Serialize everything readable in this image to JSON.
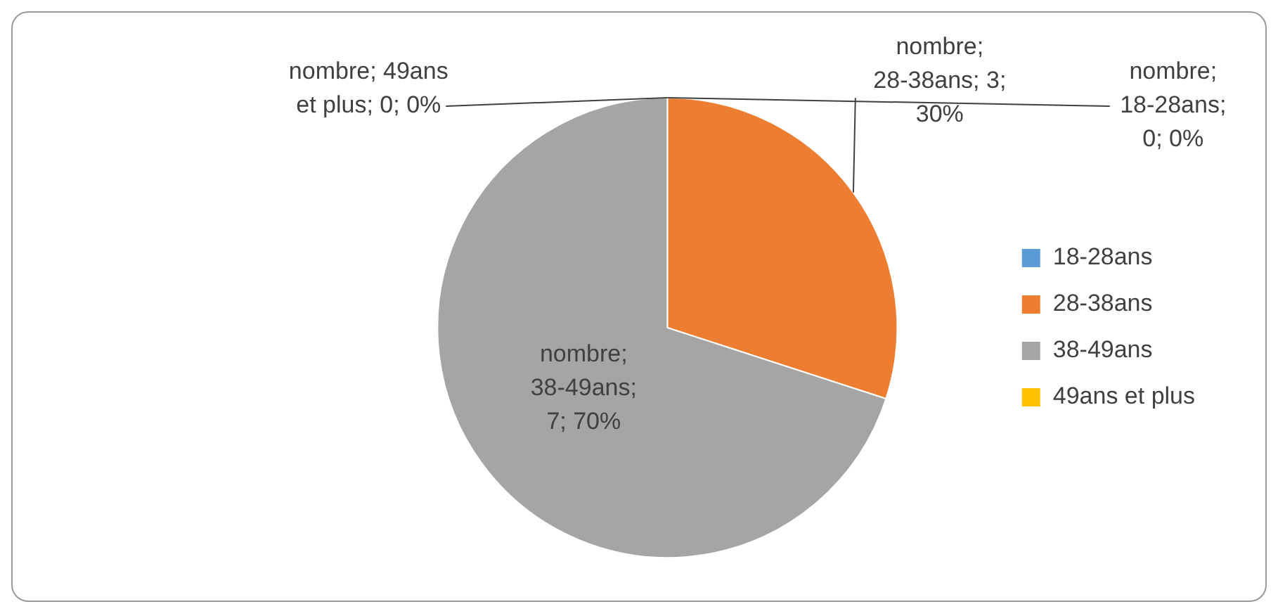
{
  "chart_data": {
    "type": "pie",
    "categories": [
      "18-28ans",
      "28-38ans",
      "38-49ans",
      "49ans et plus"
    ],
    "values": [
      0,
      3,
      7,
      0
    ],
    "colors": [
      "#5b9bd5",
      "#ed7d31",
      "#a5a5a5",
      "#ffc000"
    ],
    "value_labels": [
      "nombre; 18-28ans; 0; 0%",
      "nombre; 28-38ans; 3; 30%",
      "nombre; 38-49ans; 7; 70%",
      "nombre; 49ans et plus; 0; 0%"
    ],
    "legend": "right"
  }
}
